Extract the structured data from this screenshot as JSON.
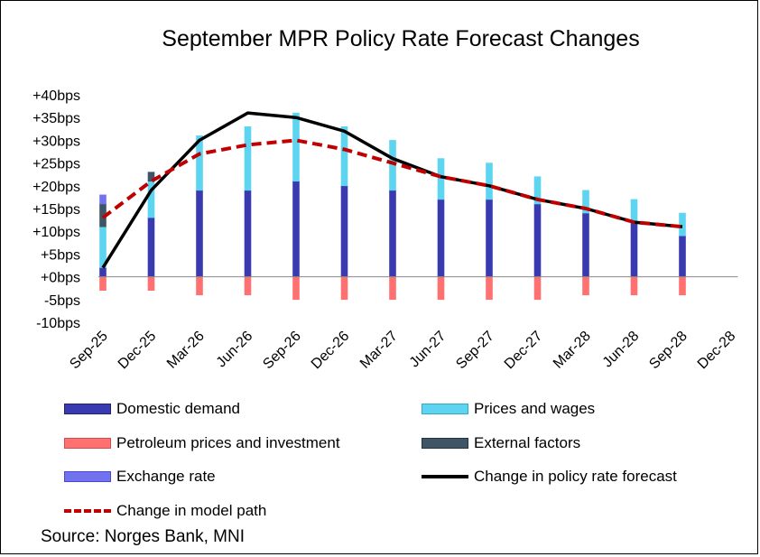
{
  "chart_data": {
    "type": "bar",
    "title": "September MPR Policy Rate Forecast Changes",
    "categories": [
      "Sep-25",
      "Dec-25",
      "Mar-26",
      "Jun-26",
      "Sep-26",
      "Dec-26",
      "Mar-27",
      "Jun-27",
      "Sep-27",
      "Dec-27",
      "Mar-28",
      "Jun-28",
      "Sep-28",
      "Dec-28"
    ],
    "y_ticks": [
      "+40bps",
      "+35bps",
      "+30bps",
      "+25bps",
      "+20bps",
      "+15bps",
      "+10bps",
      "+5bps",
      "+0bps",
      "-5bps",
      "-10bps"
    ],
    "ylim": [
      -10,
      40
    ],
    "stacked": true,
    "series": [
      {
        "name": "Domestic demand",
        "kind": "bar",
        "color": "#3a3ab0",
        "values": [
          2,
          13,
          19,
          19,
          21,
          20,
          19,
          17,
          17,
          16,
          14,
          12,
          9,
          null
        ]
      },
      {
        "name": "Prices and wages",
        "kind": "bar",
        "color": "#5dd5f0",
        "values": [
          9,
          8,
          12,
          14,
          15,
          13,
          11,
          9,
          8,
          6,
          5,
          5,
          5,
          null
        ]
      },
      {
        "name": "Petroleum prices and investment",
        "kind": "bar",
        "color": "#ff7070",
        "values": [
          -3,
          -3,
          -4,
          -4,
          -5,
          -5,
          -5,
          -5,
          -5,
          -5,
          -4,
          -4,
          -4,
          null
        ]
      },
      {
        "name": "External factors",
        "kind": "bar",
        "color": "#3f5566",
        "values": [
          5,
          2,
          0,
          0,
          0,
          0,
          0,
          0,
          0,
          0,
          0,
          0,
          0,
          null
        ]
      },
      {
        "name": "Exchange rate",
        "kind": "bar",
        "color": "#7272ee",
        "values": [
          2,
          0,
          0,
          0,
          0,
          0,
          0,
          0,
          0,
          0,
          0,
          0,
          0,
          null
        ]
      },
      {
        "name": "Change in policy rate forecast",
        "kind": "line",
        "color": "#000000",
        "dash": "solid",
        "values": [
          2,
          19,
          30,
          36,
          35,
          32,
          26,
          22,
          20,
          17,
          15,
          12,
          11,
          null
        ]
      },
      {
        "name": "Change in model path",
        "kind": "line",
        "color": "#c00000",
        "dash": "dashed",
        "values": [
          13,
          21,
          27,
          29,
          30,
          28,
          25,
          22,
          20,
          17,
          15,
          12,
          11,
          null
        ]
      }
    ],
    "legend_position": "bottom"
  },
  "source": "Source: Norges Bank, MNI"
}
